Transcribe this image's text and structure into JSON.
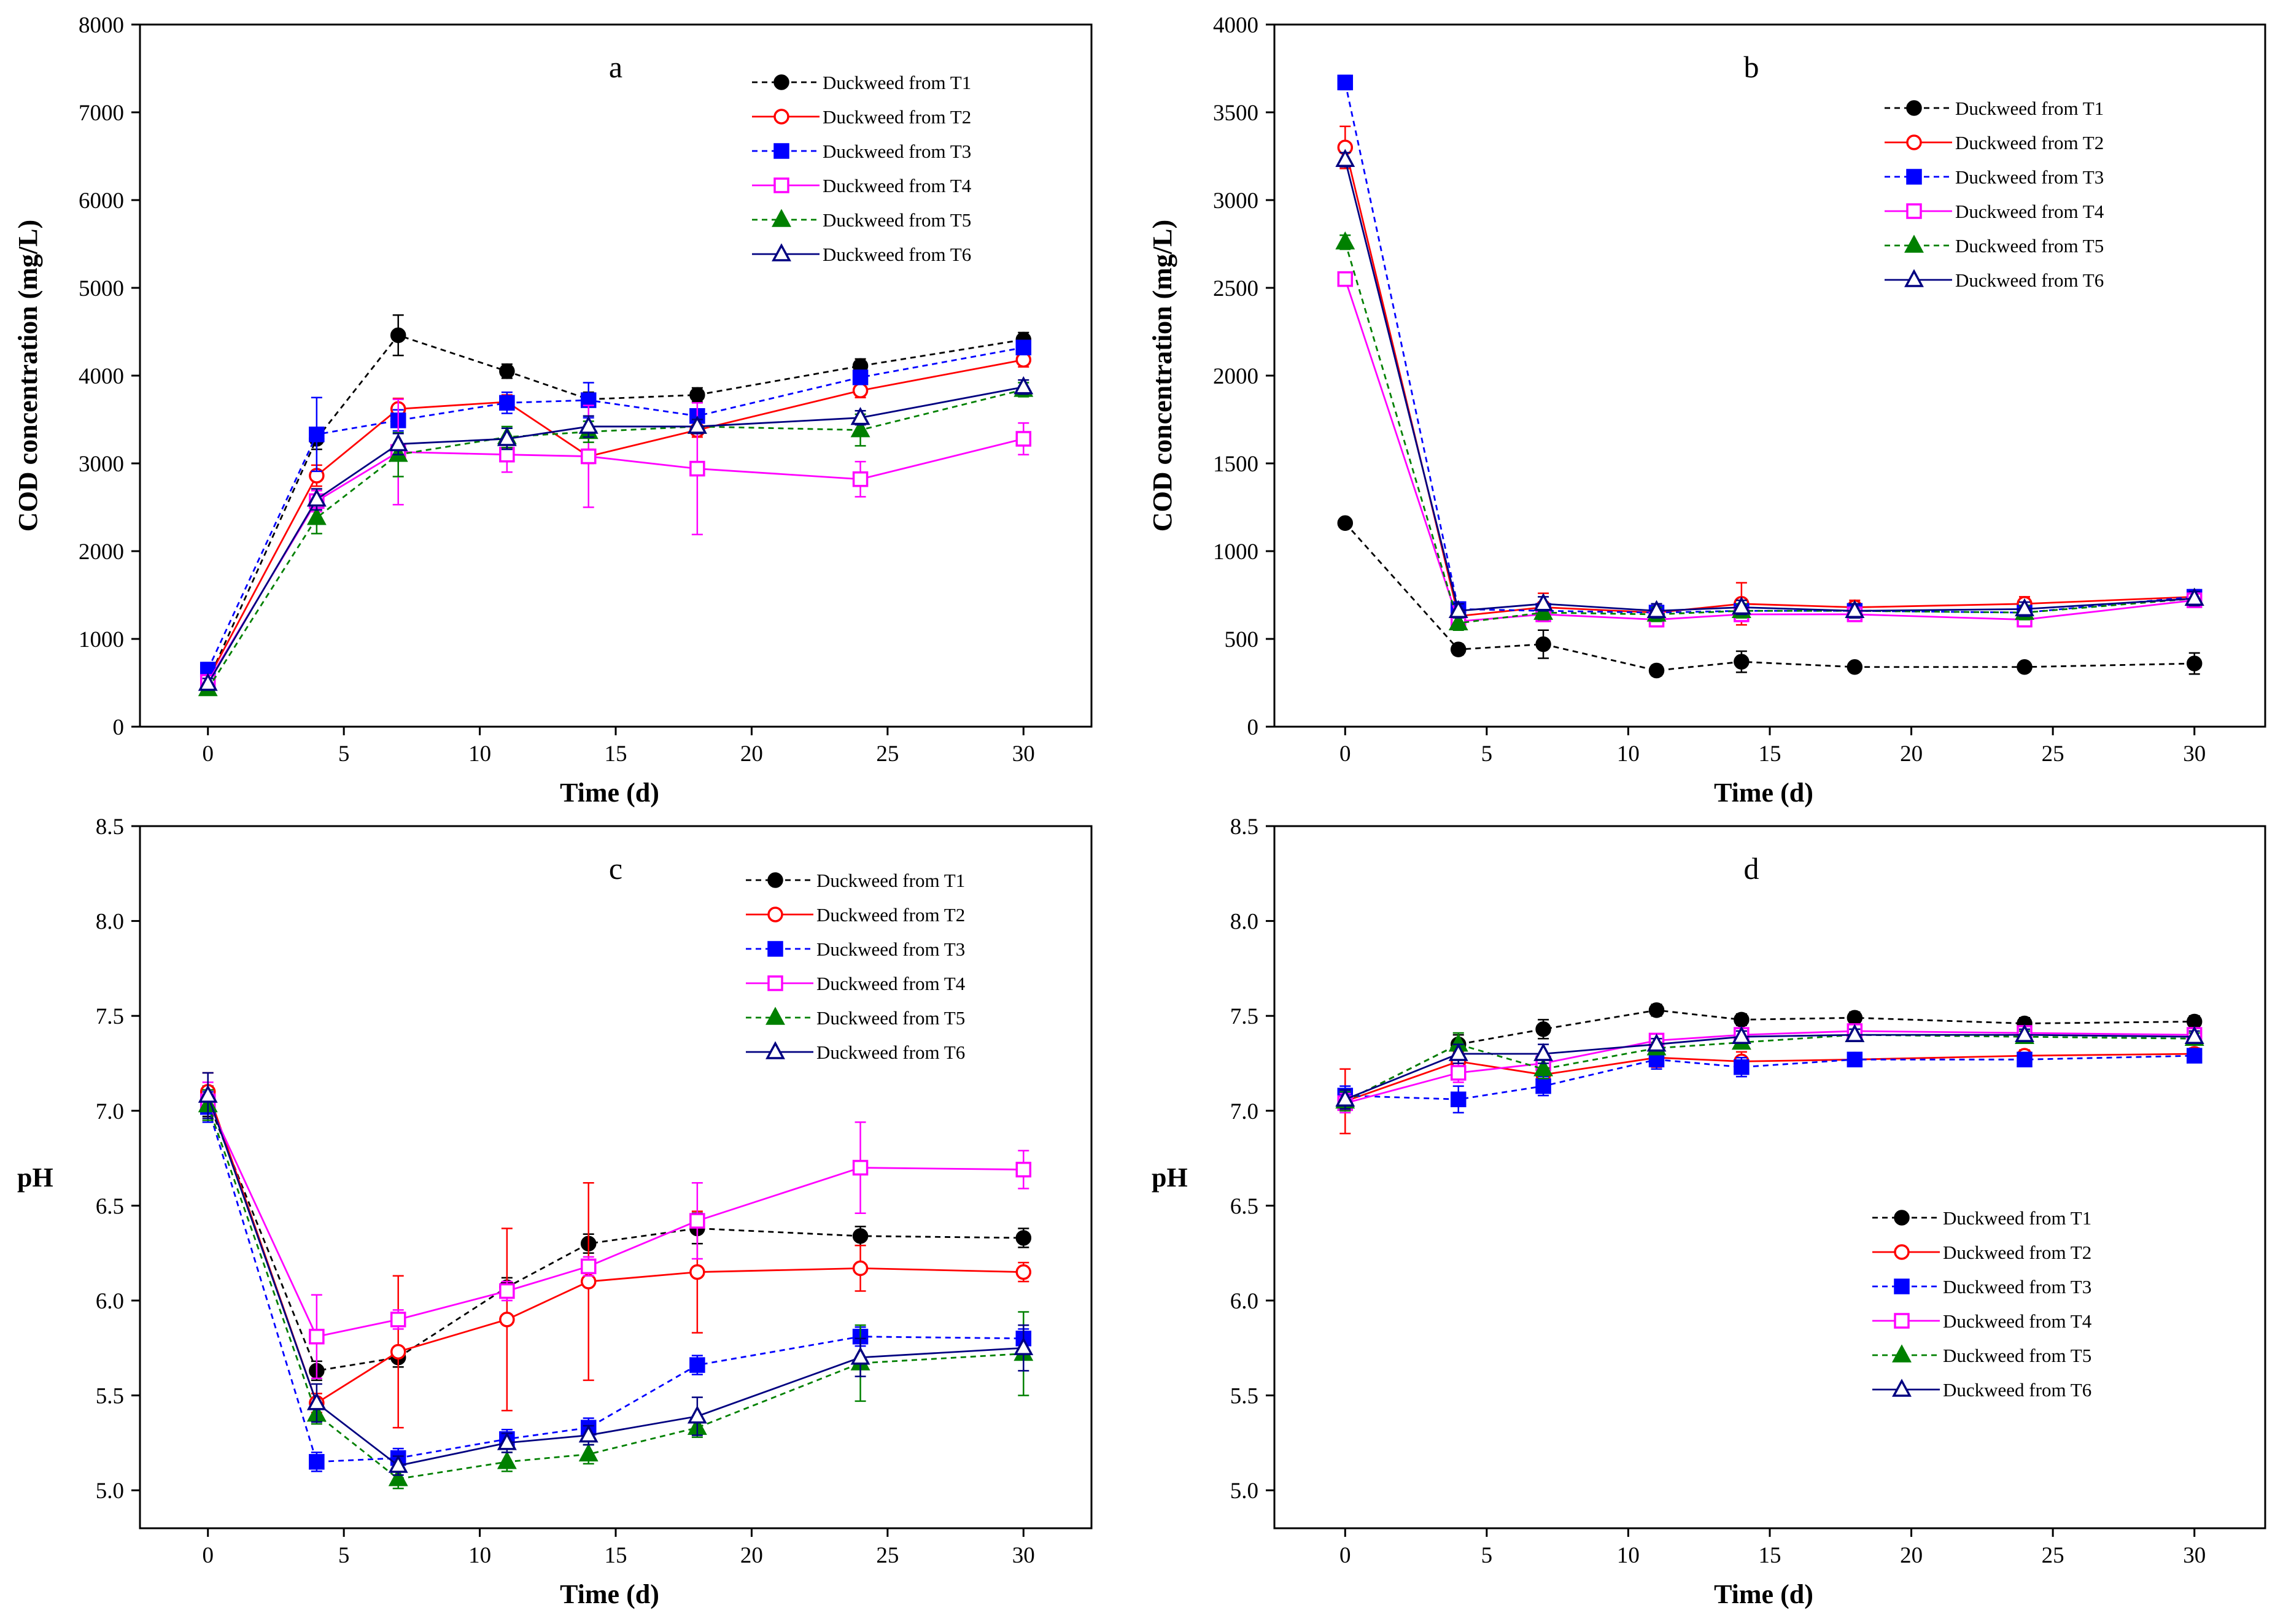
{
  "chart_data": [
    {
      "type": "line",
      "panel": "a",
      "xlabel": "Time (d)",
      "ylabel": "COD concentration (mg/L)",
      "xlim": [
        -2.5,
        32.5
      ],
      "ylim": [
        0,
        8000
      ],
      "xticks": [
        "0",
        "5",
        "10",
        "15",
        "20",
        "25",
        "30"
      ],
      "yticks": [
        "0",
        "1000",
        "2000",
        "3000",
        "4000",
        "5000",
        "6000",
        "7000",
        "8000"
      ],
      "legend_position": "top-right",
      "x": [
        0,
        4,
        7,
        11,
        14,
        18,
        24,
        30
      ],
      "series": [
        {
          "name": "Duckweed from T1",
          "color": "#000000",
          "marker": "circle",
          "filled": true,
          "dash": "dash",
          "values": [
            520,
            3280,
            4460,
            4050,
            3730,
            3780,
            4110,
            4410
          ],
          "errors": [
            80,
            120,
            230,
            80,
            80,
            80,
            80,
            80
          ]
        },
        {
          "name": "Duckweed from T2",
          "color": "#ff0000",
          "marker": "circle",
          "filled": false,
          "dash": "solid",
          "values": [
            540,
            2860,
            3620,
            3700,
            3080,
            3380,
            3830,
            4180
          ],
          "errors": [
            60,
            120,
            120,
            80,
            80,
            80,
            80,
            80
          ]
        },
        {
          "name": "Duckweed from T3",
          "color": "#0000ff",
          "marker": "square",
          "filled": true,
          "dash": "dash",
          "values": [
            650,
            3330,
            3490,
            3690,
            3720,
            3540,
            3980,
            4320
          ],
          "errors": [
            80,
            420,
            120,
            120,
            200,
            80,
            80,
            80
          ]
        },
        {
          "name": "Duckweed from T4",
          "color": "#ff00ff",
          "marker": "square",
          "filled": false,
          "dash": "solid",
          "values": [
            510,
            2570,
            3130,
            3100,
            3080,
            2940,
            2820,
            3280
          ],
          "errors": [
            60,
            120,
            600,
            200,
            580,
            750,
            200,
            180
          ]
        },
        {
          "name": "Duckweed from T5",
          "color": "#008000",
          "marker": "triangle",
          "filled": true,
          "dash": "dash",
          "values": [
            430,
            2380,
            3100,
            3300,
            3360,
            3420,
            3380,
            3840
          ],
          "errors": [
            60,
            180,
            250,
            120,
            120,
            80,
            180,
            80
          ]
        },
        {
          "name": "Duckweed from T6",
          "color": "#000080",
          "marker": "triangle",
          "filled": false,
          "dash": "solid",
          "values": [
            490,
            2590,
            3220,
            3280,
            3420,
            3420,
            3520,
            3870
          ],
          "errors": [
            60,
            120,
            120,
            120,
            120,
            80,
            80,
            80
          ]
        }
      ]
    },
    {
      "type": "line",
      "panel": "b",
      "xlabel": "Time (d)",
      "ylabel": "COD concentration (mg/L)",
      "xlim": [
        -2.5,
        32.5
      ],
      "ylim": [
        0,
        4000
      ],
      "xticks": [
        "0",
        "5",
        "10",
        "15",
        "20",
        "25",
        "30"
      ],
      "yticks": [
        "0",
        "500",
        "1000",
        "1500",
        "2000",
        "2500",
        "3000",
        "3500",
        "4000"
      ],
      "legend_position": "top-right",
      "x": [
        0,
        4,
        7,
        11,
        14,
        18,
        24,
        30
      ],
      "series": [
        {
          "name": "Duckweed from T1",
          "color": "#000000",
          "marker": "circle",
          "filled": true,
          "dash": "dash",
          "values": [
            1160,
            440,
            470,
            320,
            370,
            340,
            340,
            360
          ],
          "errors": [
            20,
            30,
            80,
            30,
            60,
            20,
            20,
            60
          ]
        },
        {
          "name": "Duckweed from T2",
          "color": "#ff0000",
          "marker": "circle",
          "filled": false,
          "dash": "solid",
          "values": [
            3300,
            630,
            680,
            650,
            700,
            680,
            700,
            740
          ],
          "errors": [
            120,
            40,
            80,
            40,
            120,
            40,
            40,
            40
          ]
        },
        {
          "name": "Duckweed from T3",
          "color": "#0000ff",
          "marker": "square",
          "filled": true,
          "dash": "dash",
          "values": [
            3670,
            670,
            660,
            650,
            660,
            660,
            650,
            740
          ],
          "errors": [
            40,
            40,
            40,
            40,
            40,
            40,
            40,
            40
          ]
        },
        {
          "name": "Duckweed from T4",
          "color": "#ff00ff",
          "marker": "square",
          "filled": false,
          "dash": "solid",
          "values": [
            2550,
            600,
            640,
            610,
            640,
            640,
            610,
            720
          ],
          "errors": [
            40,
            40,
            40,
            40,
            40,
            40,
            40,
            40
          ]
        },
        {
          "name": "Duckweed from T5",
          "color": "#008000",
          "marker": "triangle",
          "filled": true,
          "dash": "dash",
          "values": [
            2760,
            590,
            650,
            640,
            660,
            660,
            650,
            730
          ],
          "errors": [
            40,
            40,
            40,
            40,
            40,
            40,
            40,
            40
          ]
        },
        {
          "name": "Duckweed from T6",
          "color": "#000080",
          "marker": "triangle",
          "filled": false,
          "dash": "solid",
          "values": [
            3230,
            660,
            700,
            660,
            680,
            660,
            670,
            730
          ],
          "errors": [
            40,
            40,
            40,
            40,
            40,
            40,
            40,
            40
          ]
        }
      ]
    },
    {
      "type": "line",
      "panel": "c",
      "xlabel": "Time (d)",
      "ylabel": "pH",
      "xlim": [
        -2.5,
        32.5
      ],
      "ylim": [
        4.8,
        8.5
      ],
      "xticks": [
        "0",
        "5",
        "10",
        "15",
        "20",
        "25",
        "30"
      ],
      "yticks": [
        "5.0",
        "5.5",
        "6.0",
        "6.5",
        "7.0",
        "7.5",
        "8.0",
        "8.5"
      ],
      "legend_position": "top-right",
      "x": [
        0,
        4,
        7,
        11,
        14,
        18,
        24,
        30
      ],
      "series": [
        {
          "name": "Duckweed from T1",
          "color": "#000000",
          "marker": "circle",
          "filled": true,
          "dash": "dash",
          "values": [
            7.05,
            5.63,
            5.7,
            6.07,
            6.3,
            6.38,
            6.34,
            6.33
          ],
          "errors": [
            0.08,
            0.05,
            0.05,
            0.05,
            0.05,
            0.08,
            0.05,
            0.05
          ]
        },
        {
          "name": "Duckweed from T2",
          "color": "#ff0000",
          "marker": "circle",
          "filled": false,
          "dash": "solid",
          "values": [
            7.1,
            5.46,
            5.73,
            5.9,
            6.1,
            6.15,
            6.17,
            6.15
          ],
          "errors": [
            0.1,
            0.05,
            0.4,
            0.48,
            0.52,
            0.32,
            0.12,
            0.05
          ]
        },
        {
          "name": "Duckweed from T3",
          "color": "#0000ff",
          "marker": "square",
          "filled": true,
          "dash": "dash",
          "values": [
            7.02,
            5.15,
            5.17,
            5.27,
            5.33,
            5.66,
            5.81,
            5.8
          ],
          "errors": [
            0.08,
            0.05,
            0.05,
            0.05,
            0.05,
            0.05,
            0.05,
            0.05
          ]
        },
        {
          "name": "Duckweed from T4",
          "color": "#ff00ff",
          "marker": "square",
          "filled": false,
          "dash": "solid",
          "values": [
            7.05,
            5.81,
            5.9,
            6.05,
            6.18,
            6.42,
            6.7,
            6.69
          ],
          "errors": [
            0.1,
            0.22,
            0.05,
            0.05,
            0.05,
            0.2,
            0.24,
            0.1
          ]
        },
        {
          "name": "Duckweed from T5",
          "color": "#008000",
          "marker": "triangle",
          "filled": true,
          "dash": "dash",
          "values": [
            7.03,
            5.4,
            5.06,
            5.15,
            5.19,
            5.33,
            5.67,
            5.72
          ],
          "errors": [
            0.08,
            0.05,
            0.05,
            0.05,
            0.05,
            0.05,
            0.2,
            0.22
          ]
        },
        {
          "name": "Duckweed from T6",
          "color": "#000080",
          "marker": "triangle",
          "filled": false,
          "dash": "solid",
          "values": [
            7.08,
            5.46,
            5.13,
            5.25,
            5.29,
            5.39,
            5.7,
            5.75
          ],
          "errors": [
            0.12,
            0.1,
            0.05,
            0.05,
            0.05,
            0.1,
            0.1,
            0.12
          ]
        }
      ]
    },
    {
      "type": "line",
      "panel": "d",
      "xlabel": "Time (d)",
      "ylabel": "pH",
      "xlim": [
        -2.5,
        32.5
      ],
      "ylim": [
        4.8,
        8.5
      ],
      "xticks": [
        "0",
        "5",
        "10",
        "15",
        "20",
        "25",
        "30"
      ],
      "yticks": [
        "5.0",
        "5.5",
        "6.0",
        "6.5",
        "7.0",
        "7.5",
        "8.0",
        "8.5"
      ],
      "legend_position": "right",
      "x": [
        0,
        4,
        7,
        11,
        14,
        18,
        24,
        30
      ],
      "series": [
        {
          "name": "Duckweed from T1",
          "color": "#000000",
          "marker": "circle",
          "filled": true,
          "dash": "dash",
          "values": [
            7.05,
            7.35,
            7.43,
            7.53,
            7.48,
            7.49,
            7.46,
            7.47
          ],
          "errors": [
            0.05,
            0.05,
            0.05,
            0.03,
            0.03,
            0.03,
            0.03,
            0.03
          ]
        },
        {
          "name": "Duckweed from T2",
          "color": "#ff0000",
          "marker": "circle",
          "filled": false,
          "dash": "solid",
          "values": [
            7.05,
            7.26,
            7.19,
            7.28,
            7.26,
            7.27,
            7.29,
            7.3
          ],
          "errors": [
            0.17,
            0.05,
            0.08,
            0.05,
            0.05,
            0.03,
            0.03,
            0.03
          ]
        },
        {
          "name": "Duckweed from T3",
          "color": "#0000ff",
          "marker": "square",
          "filled": true,
          "dash": "dash",
          "values": [
            7.08,
            7.06,
            7.13,
            7.27,
            7.23,
            7.27,
            7.27,
            7.29
          ],
          "errors": [
            0.05,
            0.07,
            0.05,
            0.05,
            0.05,
            0.03,
            0.03,
            0.03
          ]
        },
        {
          "name": "Duckweed from T4",
          "color": "#ff00ff",
          "marker": "square",
          "filled": false,
          "dash": "solid",
          "values": [
            7.04,
            7.2,
            7.25,
            7.37,
            7.4,
            7.42,
            7.41,
            7.4
          ],
          "errors": [
            0.05,
            0.05,
            0.05,
            0.03,
            0.03,
            0.03,
            0.03,
            0.03
          ]
        },
        {
          "name": "Duckweed from T5",
          "color": "#008000",
          "marker": "triangle",
          "filled": true,
          "dash": "dash",
          "values": [
            7.05,
            7.35,
            7.22,
            7.33,
            7.36,
            7.4,
            7.39,
            7.38
          ],
          "errors": [
            0.05,
            0.06,
            0.05,
            0.03,
            0.03,
            0.03,
            0.03,
            0.03
          ]
        },
        {
          "name": "Duckweed from T6",
          "color": "#000080",
          "marker": "triangle",
          "filled": false,
          "dash": "solid",
          "values": [
            7.06,
            7.3,
            7.3,
            7.35,
            7.39,
            7.4,
            7.4,
            7.39
          ],
          "errors": [
            0.05,
            0.05,
            0.05,
            0.03,
            0.03,
            0.03,
            0.03,
            0.03
          ]
        }
      ]
    }
  ]
}
